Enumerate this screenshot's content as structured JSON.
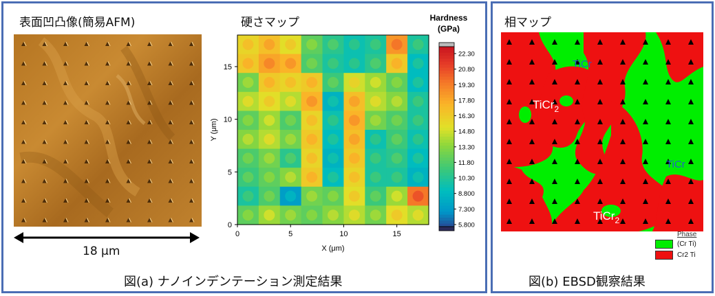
{
  "panel_a": {
    "afm_title": "表面凹凸像(簡易AFM)",
    "scale_label": "18 μm",
    "map_title": "硬さマップ",
    "caption": "図(a) ナノインデンテーション測定結果"
  },
  "panel_b": {
    "title": "相マップ",
    "caption": "図(b) EBSD観察結果",
    "labels": {
      "ticr_1": "TiCr",
      "ticr_2": "TiCr",
      "ticr2_main": "TiCr",
      "ticr2_sub": "2"
    },
    "legend": {
      "title": "Phase",
      "items": [
        {
          "label": "(Cr Ti)",
          "color": "#00ee00"
        },
        {
          "label": "Cr2 Ti",
          "color": "#ee1111"
        }
      ]
    }
  },
  "colors": {
    "frame": "#4a6db4",
    "green_phase": "#00ee00",
    "red_phase": "#ee1111",
    "label_blue": "#2060c8"
  },
  "chart_data": {
    "type": "heatmap",
    "title": "硬さマップ",
    "xlabel": "X (μm)",
    "ylabel": "Y (μm)",
    "xlim": [
      0,
      18
    ],
    "ylim": [
      0,
      18
    ],
    "xticks": [
      0,
      5,
      10,
      15
    ],
    "yticks": [
      0,
      5,
      10,
      15
    ],
    "colorbar": {
      "title_line1": "Hardness",
      "title_line2": "(GPa)",
      "ticks": [
        "22.30",
        "20.80",
        "19.30",
        "17.80",
        "16.30",
        "14.80",
        "13.30",
        "11.80",
        "10.30",
        "8.800",
        "7.300",
        "5.800"
      ],
      "range": [
        5.8,
        22.3
      ]
    },
    "x": [
      0,
      2,
      4,
      6,
      8,
      10,
      12,
      14,
      16
    ],
    "y": [
      18,
      16,
      14,
      12,
      10,
      8,
      6,
      4,
      2,
      0
    ],
    "hardness_rows_top_to_bottom": [
      [
        15.5,
        16.5,
        15.0,
        12.0,
        10.5,
        9.5,
        10.0,
        18.0,
        10.0
      ],
      [
        16.0,
        17.5,
        17.0,
        11.5,
        10.0,
        9.5,
        10.5,
        16.0,
        9.0
      ],
      [
        12.5,
        16.0,
        15.5,
        16.0,
        11.0,
        14.5,
        13.5,
        12.0,
        9.0
      ],
      [
        14.0,
        15.0,
        14.0,
        17.0,
        8.5,
        16.5,
        14.0,
        13.0,
        10.0
      ],
      [
        12.0,
        13.5,
        11.5,
        15.5,
        9.5,
        17.0,
        12.5,
        11.5,
        10.0
      ],
      [
        13.0,
        14.0,
        12.5,
        16.0,
        9.0,
        16.5,
        9.5,
        11.0,
        9.5
      ],
      [
        11.5,
        12.5,
        10.5,
        15.5,
        8.5,
        16.0,
        10.0,
        10.5,
        9.0
      ],
      [
        11.0,
        12.0,
        13.0,
        16.0,
        9.0,
        15.5,
        10.0,
        10.0,
        8.5
      ],
      [
        10.0,
        11.5,
        7.5,
        12.5,
        12.0,
        15.0,
        11.0,
        13.5,
        19.0
      ],
      [
        12.0,
        13.5,
        12.5,
        12.0,
        13.0,
        14.0,
        12.5,
        15.0,
        14.0
      ]
    ]
  }
}
